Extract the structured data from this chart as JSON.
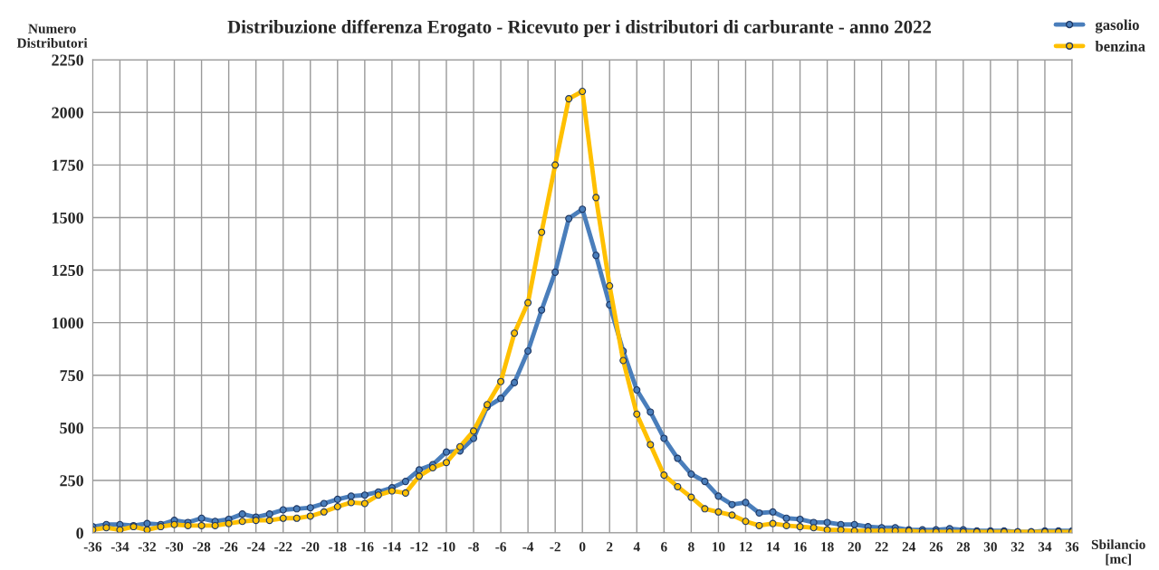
{
  "chart_data": {
    "type": "line",
    "title": "Distribuzione differenza Erogato - Ricevuto per i distributori di carburante - anno 2022",
    "xlabel": "Sbilancio\n[mc]",
    "ylabel": "Numero\nDistributori",
    "x": [
      -36,
      -35,
      -34,
      -33,
      -32,
      -31,
      -30,
      -29,
      -28,
      -27,
      -26,
      -25,
      -24,
      -23,
      -22,
      -21,
      -20,
      -19,
      -18,
      -17,
      -16,
      -15,
      -14,
      -13,
      -12,
      -11,
      -10,
      -9,
      -8,
      -7,
      -6,
      -5,
      -4,
      -3,
      -2,
      -1,
      0,
      1,
      2,
      3,
      4,
      5,
      6,
      7,
      8,
      9,
      10,
      11,
      12,
      13,
      14,
      15,
      16,
      17,
      18,
      19,
      20,
      21,
      22,
      23,
      24,
      25,
      26,
      27,
      28,
      29,
      30,
      31,
      32,
      33,
      34,
      35,
      36
    ],
    "series": [
      {
        "name": "gasolio",
        "color": "#4a7ebb",
        "values": [
          30,
          40,
          40,
          35,
          45,
          40,
          60,
          50,
          70,
          55,
          65,
          90,
          75,
          90,
          110,
          115,
          120,
          140,
          160,
          175,
          180,
          195,
          215,
          245,
          300,
          325,
          385,
          390,
          450,
          600,
          640,
          715,
          865,
          1060,
          1240,
          1495,
          1540,
          1320,
          1085,
          865,
          680,
          575,
          450,
          355,
          280,
          245,
          175,
          135,
          145,
          95,
          100,
          70,
          65,
          50,
          50,
          40,
          40,
          30,
          25,
          25,
          15,
          15,
          15,
          20,
          15,
          10,
          10,
          10,
          5,
          5,
          10,
          10,
          10
        ]
      },
      {
        "name": "benzina",
        "color": "#ffc000",
        "values": [
          15,
          25,
          15,
          30,
          15,
          30,
          40,
          35,
          35,
          35,
          45,
          55,
          60,
          60,
          70,
          70,
          80,
          100,
          125,
          145,
          140,
          180,
          200,
          190,
          270,
          310,
          335,
          410,
          485,
          610,
          720,
          950,
          1095,
          1430,
          1750,
          2065,
          2100,
          1595,
          1175,
          820,
          565,
          420,
          275,
          220,
          170,
          115,
          100,
          85,
          55,
          35,
          45,
          35,
          30,
          25,
          15,
          15,
          10,
          10,
          10,
          10,
          10,
          5,
          5,
          5,
          5,
          5,
          5,
          5,
          5,
          5,
          5,
          5,
          5
        ]
      }
    ],
    "xlim": [
      -36,
      36
    ],
    "xticks": [
      -36,
      -34,
      -32,
      -30,
      -28,
      -26,
      -24,
      -22,
      -20,
      -18,
      -16,
      -14,
      -12,
      -10,
      -8,
      -6,
      -4,
      -2,
      0,
      2,
      4,
      6,
      8,
      10,
      12,
      14,
      16,
      18,
      20,
      22,
      24,
      26,
      28,
      30,
      32,
      34,
      36
    ],
    "ylim": [
      0,
      2250
    ],
    "yticks": [
      0,
      250,
      500,
      750,
      1000,
      1250,
      1500,
      1750,
      2000,
      2250
    ],
    "grid": true,
    "legend": "top right",
    "marker": "circle",
    "line_style": "solid"
  }
}
